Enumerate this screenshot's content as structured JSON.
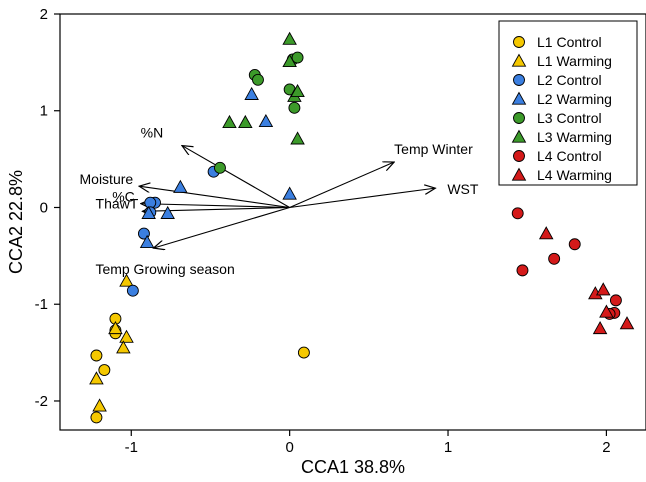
{
  "chart_data": {
    "type": "scatter",
    "xlabel": "CCA1 38.8%",
    "ylabel": "CCA2 22.8%",
    "xlim": [
      -1.45,
      2.25
    ],
    "ylim": [
      -2.3,
      2.0
    ],
    "x_ticks": [
      {
        "value": -1,
        "label": "-1"
      },
      {
        "value": 0,
        "label": "0"
      },
      {
        "value": 1,
        "label": "1"
      },
      {
        "value": 2,
        "label": "2"
      }
    ],
    "y_ticks": [
      {
        "value": -2,
        "label": "-2"
      },
      {
        "value": -1,
        "label": "-1"
      },
      {
        "value": 0,
        "label": "0"
      },
      {
        "value": 1,
        "label": "1"
      },
      {
        "value": 2,
        "label": "2"
      }
    ],
    "legend_position": "top-right",
    "series": [
      {
        "name": "L1 Control",
        "color": "#f5c800",
        "marker": "circle",
        "points": [
          [
            -1.1,
            -1.15
          ],
          [
            -1.1,
            -1.27
          ],
          [
            -1.1,
            -1.3
          ],
          [
            -1.17,
            -1.68
          ],
          [
            -1.22,
            -1.53
          ],
          [
            -1.22,
            -2.17
          ],
          [
            0.09,
            -1.5
          ]
        ]
      },
      {
        "name": "L1 Warming",
        "color": "#f5c800",
        "marker": "triangle",
        "points": [
          [
            -1.03,
            -0.76
          ],
          [
            -1.1,
            -1.25
          ],
          [
            -1.03,
            -1.34
          ],
          [
            -1.05,
            -1.45
          ],
          [
            -1.22,
            -1.77
          ],
          [
            -1.2,
            -2.05
          ]
        ]
      },
      {
        "name": "L2 Control",
        "color": "#3b7fe0",
        "marker": "circle",
        "points": [
          [
            -0.48,
            0.37
          ],
          [
            -0.85,
            0.05
          ],
          [
            -0.88,
            0.05
          ],
          [
            -0.88,
            -0.05
          ],
          [
            -0.92,
            -0.27
          ],
          [
            -0.99,
            -0.86
          ]
        ]
      },
      {
        "name": "L2 Warming",
        "color": "#3b7fe0",
        "marker": "triangle",
        "points": [
          [
            -0.69,
            0.21
          ],
          [
            -0.77,
            -0.06
          ],
          [
            -0.89,
            -0.06
          ],
          [
            -0.9,
            -0.36
          ],
          [
            -0.24,
            1.17
          ],
          [
            -0.15,
            0.89
          ],
          [
            0.0,
            0.14
          ]
        ]
      },
      {
        "name": "L3 Control",
        "color": "#3c9a2a",
        "marker": "circle",
        "points": [
          [
            -0.44,
            0.41
          ],
          [
            -0.22,
            1.37
          ],
          [
            -0.2,
            1.32
          ],
          [
            0.0,
            1.22
          ],
          [
            0.03,
            1.03
          ],
          [
            0.02,
            1.53
          ],
          [
            0.05,
            1.55
          ]
        ]
      },
      {
        "name": "L3 Warming",
        "color": "#3c9a2a",
        "marker": "triangle",
        "points": [
          [
            -0.28,
            0.88
          ],
          [
            -0.38,
            0.88
          ],
          [
            0.0,
            1.74
          ],
          [
            0.0,
            1.51
          ],
          [
            0.03,
            1.15
          ],
          [
            0.05,
            1.2
          ],
          [
            0.05,
            0.71
          ]
        ]
      },
      {
        "name": "L4 Control",
        "color": "#d41a1a",
        "marker": "circle",
        "points": [
          [
            1.44,
            -0.06
          ],
          [
            1.47,
            -0.65
          ],
          [
            1.8,
            -0.38
          ],
          [
            1.67,
            -0.53
          ],
          [
            2.06,
            -0.96
          ],
          [
            2.05,
            -1.09
          ],
          [
            2.02,
            -1.1
          ]
        ]
      },
      {
        "name": "L4 Warming",
        "color": "#d41a1a",
        "marker": "triangle",
        "points": [
          [
            1.62,
            -0.27
          ],
          [
            1.93,
            -0.89
          ],
          [
            1.98,
            -0.85
          ],
          [
            2.0,
            -1.08
          ],
          [
            1.96,
            -1.25
          ],
          [
            2.13,
            -1.2
          ]
        ]
      }
    ],
    "vectors": [
      {
        "label": "%N",
        "x": -0.68,
        "y": 0.64
      },
      {
        "label": "Temp Winter",
        "x": 0.66,
        "y": 0.47
      },
      {
        "label": "WST",
        "x": 0.92,
        "y": 0.2
      },
      {
        "label": "Moisture",
        "x": -0.95,
        "y": 0.22
      },
      {
        "label": "%C",
        "x": -0.94,
        "y": 0.04
      },
      {
        "label": "ThawT",
        "x": -0.93,
        "y": -0.04
      },
      {
        "label": "Temp Growing season",
        "x": -0.86,
        "y": -0.42
      }
    ]
  }
}
